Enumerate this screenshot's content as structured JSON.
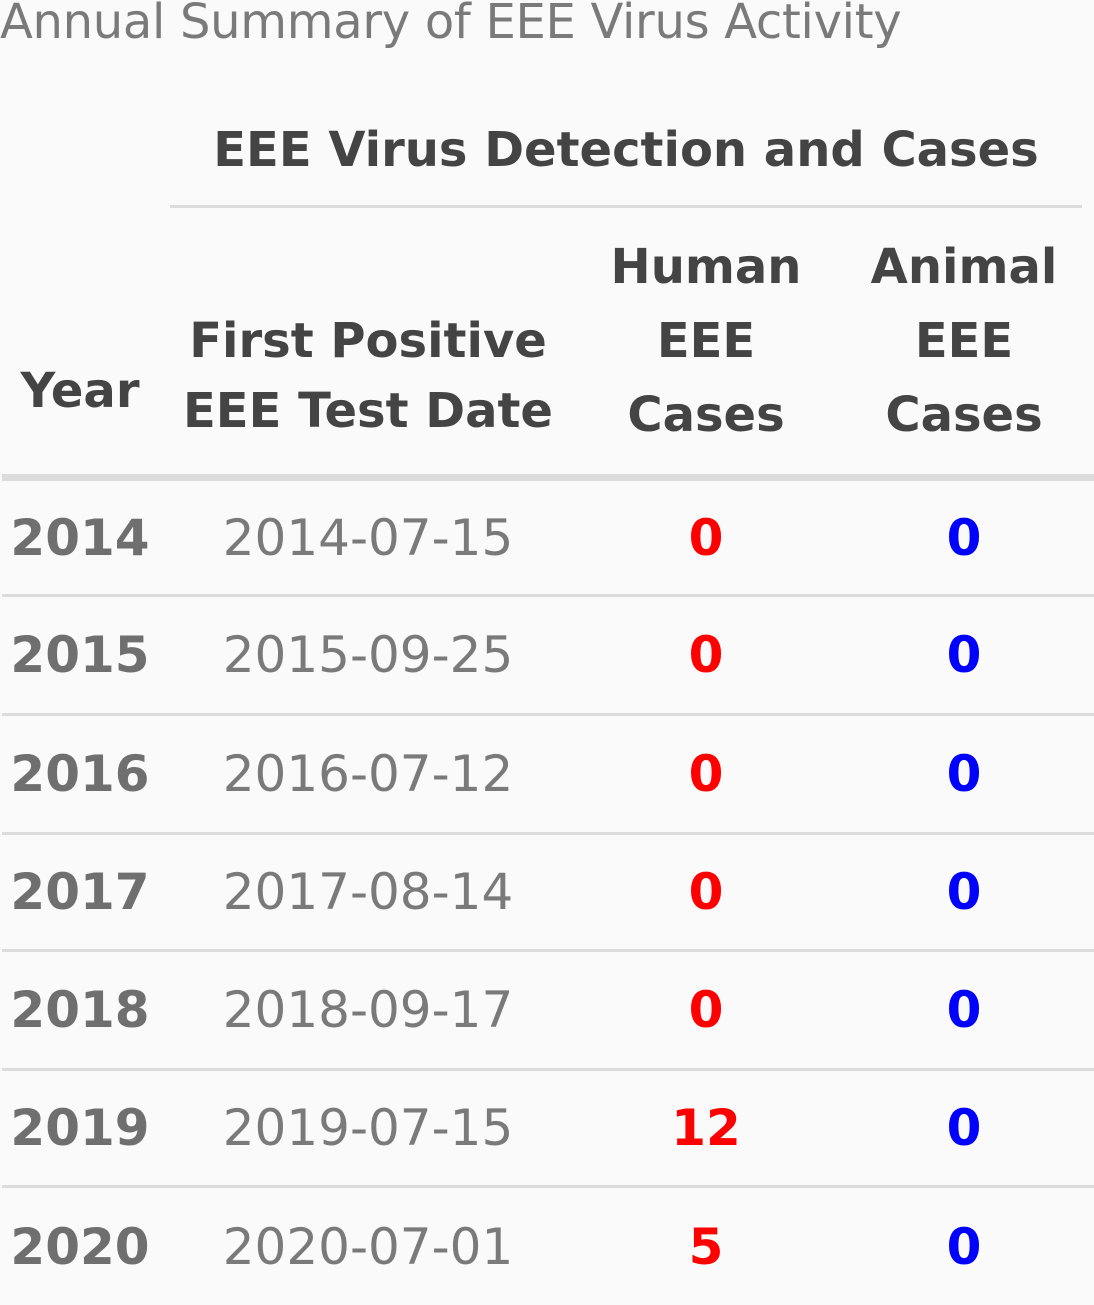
{
  "caption": "Annual Summary of EEE Virus Activity",
  "spanner": "EEE Virus Detection and Cases",
  "columns": {
    "year": [
      "Year"
    ],
    "first_positive": [
      "First Positive",
      "EEE Test Date"
    ],
    "human": [
      "Human",
      "EEE",
      "Cases"
    ],
    "animal": [
      "Animal",
      "EEE",
      "Cases"
    ]
  },
  "rows": [
    {
      "year": "2014",
      "date": "2014-07-15",
      "human": "0",
      "animal": "0"
    },
    {
      "year": "2015",
      "date": "2015-09-25",
      "human": "0",
      "animal": "0"
    },
    {
      "year": "2016",
      "date": "2016-07-12",
      "human": "0",
      "animal": "0"
    },
    {
      "year": "2017",
      "date": "2017-08-14",
      "human": "0",
      "animal": "0"
    },
    {
      "year": "2018",
      "date": "2018-09-17",
      "human": "0",
      "animal": "0"
    },
    {
      "year": "2019",
      "date": "2019-07-15",
      "human": "12",
      "animal": "0"
    },
    {
      "year": "2020",
      "date": "2020-07-01",
      "human": "5",
      "animal": "0"
    }
  ],
  "colors": {
    "human_value": "#ff0000",
    "animal_value": "#0000ff",
    "rule": "#dcdcdc",
    "background": "#fafafa"
  }
}
